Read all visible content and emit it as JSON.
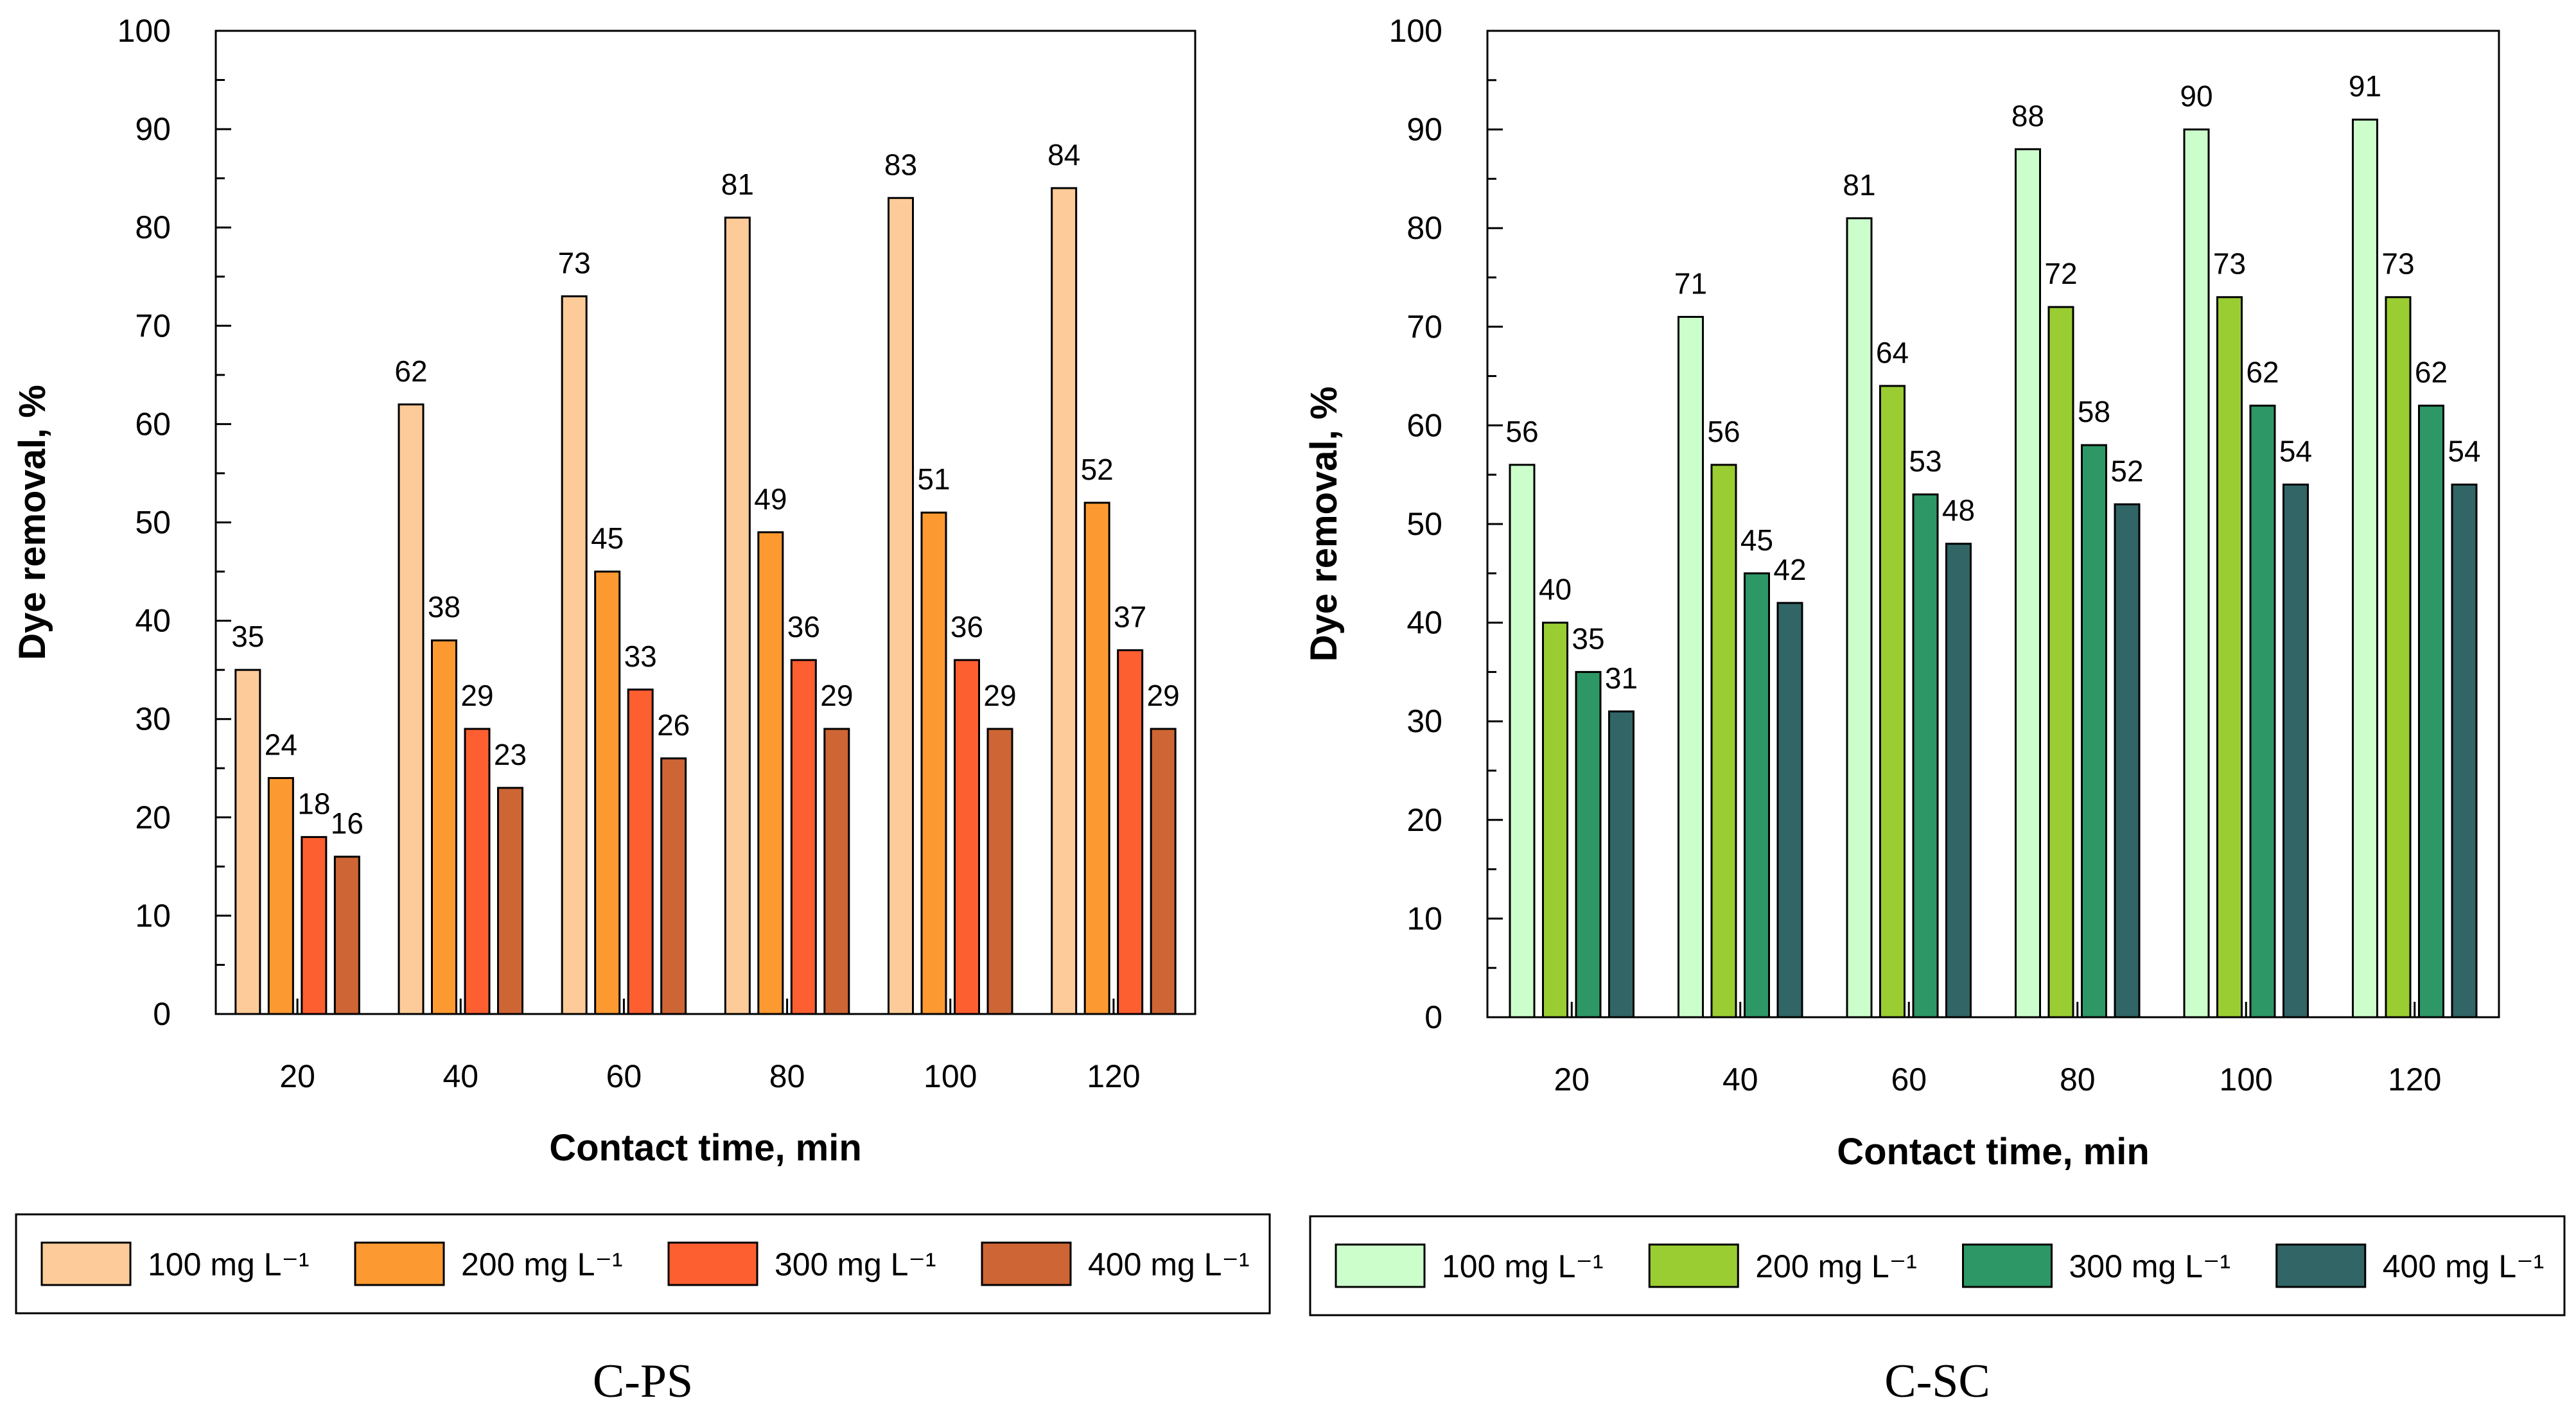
{
  "chart_data": [
    {
      "type": "bar",
      "title": "C-PS",
      "xlabel": "Contact time, min",
      "ylabel": "Dye removal, %",
      "ylim": [
        0,
        100
      ],
      "yticks": [
        0,
        10,
        20,
        30,
        40,
        50,
        60,
        70,
        80,
        90,
        100
      ],
      "categories": [
        "20",
        "40",
        "60",
        "80",
        "100",
        "120"
      ],
      "legend_position": "bottom",
      "series": [
        {
          "name": "100 mg L⁻¹",
          "color": "#FDCB99",
          "values": [
            35,
            62,
            73,
            81,
            83,
            84
          ]
        },
        {
          "name": "200 mg L⁻¹",
          "color": "#FC9A31",
          "values": [
            24,
            38,
            45,
            49,
            51,
            52
          ]
        },
        {
          "name": "300 mg L⁻¹",
          "color": "#FE5F31",
          "values": [
            18,
            29,
            33,
            36,
            36,
            37
          ]
        },
        {
          "name": "400 mg L⁻¹",
          "color": "#CD6534",
          "values": [
            16,
            23,
            26,
            29,
            29,
            29
          ]
        }
      ]
    },
    {
      "type": "bar",
      "title": "C-SC",
      "xlabel": "Contact time, min",
      "ylabel": "Dye removal, %",
      "ylim": [
        0,
        100
      ],
      "yticks": [
        0,
        10,
        20,
        30,
        40,
        50,
        60,
        70,
        80,
        90,
        100
      ],
      "categories": [
        "20",
        "40",
        "60",
        "80",
        "100",
        "120"
      ],
      "legend_position": "bottom",
      "series": [
        {
          "name": "100 mg L⁻¹",
          "color": "#CCFECC",
          "values": [
            56,
            71,
            81,
            88,
            90,
            91
          ]
        },
        {
          "name": "200 mg L⁻¹",
          "color": "#9ACD32",
          "values": [
            40,
            56,
            64,
            72,
            73,
            73
          ]
        },
        {
          "name": "300 mg L⁻¹",
          "color": "#2E9766",
          "values": [
            35,
            45,
            53,
            58,
            62,
            62
          ]
        },
        {
          "name": "400 mg L⁻¹",
          "color": "#316566",
          "values": [
            31,
            42,
            48,
            52,
            54,
            54
          ]
        }
      ]
    }
  ]
}
